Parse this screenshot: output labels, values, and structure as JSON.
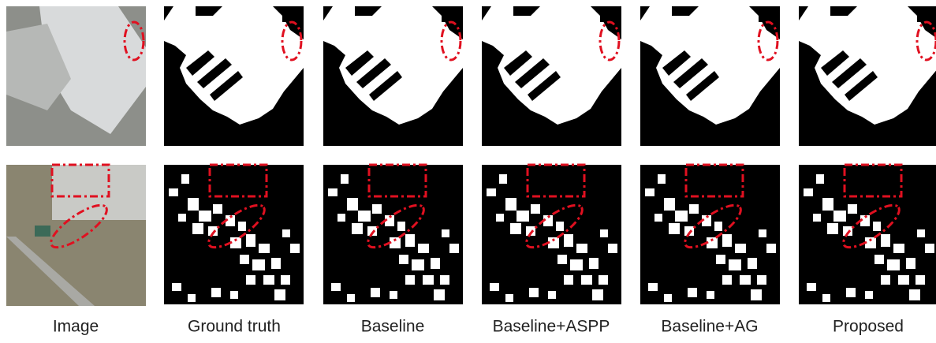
{
  "labels": [
    "Image",
    "Ground truth",
    "Baseline",
    "Baseline+ASPP",
    "Baseline+AG",
    "Proposed"
  ]
}
